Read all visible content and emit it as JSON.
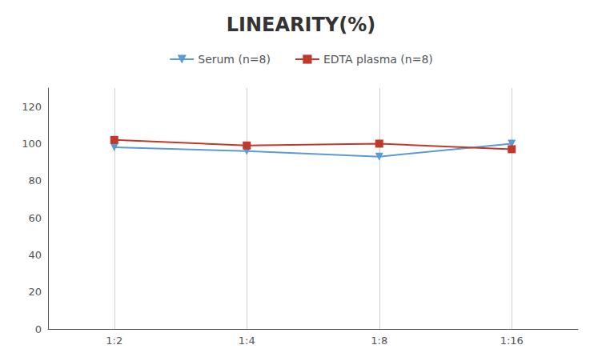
{
  "chart_data": {
    "type": "line",
    "title": "LINEARITY(%)",
    "categories": [
      "1:2",
      "1:4",
      "1:8",
      "1:16"
    ],
    "series": [
      {
        "name": "Serum (n=8)",
        "color": "#5b9bd5",
        "marker": "triangle-down",
        "values": [
          98,
          96,
          93,
          100
        ]
      },
      {
        "name": "EDTA plasma (n=8)",
        "color": "#c0392b",
        "marker": "square",
        "values": [
          102,
          99,
          100,
          97
        ]
      }
    ],
    "ylim": [
      0,
      130
    ],
    "yticks": [
      0,
      20,
      40,
      60,
      80,
      100,
      120
    ],
    "grid": "x",
    "legend": "top"
  }
}
